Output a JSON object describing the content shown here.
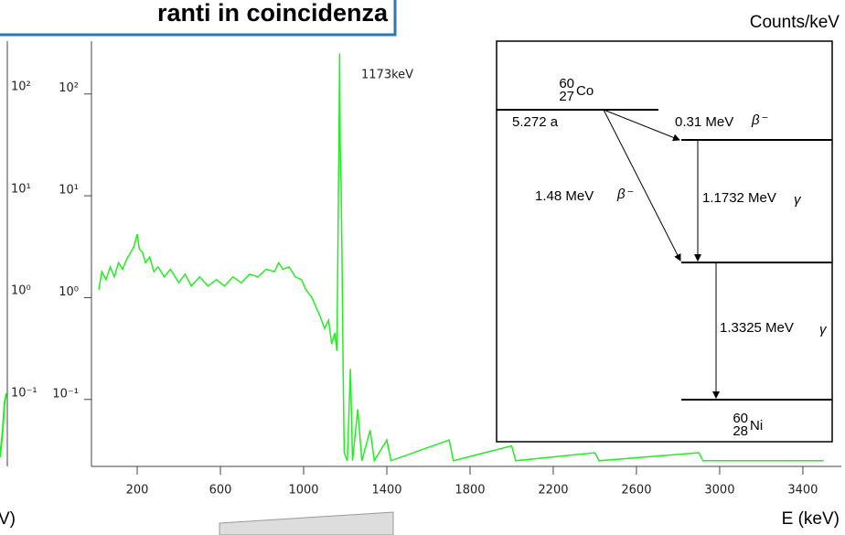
{
  "title_box": "ranti in coincidenza",
  "left_panel": {
    "yticks": [
      "10²",
      "10¹",
      "10⁰",
      "10⁻¹"
    ],
    "xlabel": "V)"
  },
  "chart_data": {
    "type": "line",
    "ylabel": "Counts/keV",
    "xlabel": "E (keV)",
    "annotation": "1173keV",
    "color": "#22ee22",
    "log_y": true,
    "x": [
      15,
      30,
      50,
      70,
      90,
      110,
      130,
      150,
      170,
      185,
      200,
      210,
      225,
      240,
      260,
      280,
      300,
      330,
      360,
      400,
      430,
      460,
      500,
      540,
      580,
      620,
      660,
      700,
      740,
      780,
      820,
      860,
      880,
      900,
      930,
      960,
      990,
      1010,
      1040,
      1060,
      1080,
      1100,
      1120,
      1135,
      1150,
      1160,
      1165,
      1170,
      1173,
      1176,
      1180,
      1185,
      1190,
      1195,
      1210,
      1225,
      1235,
      1260,
      1280,
      1320,
      1340,
      1400,
      1420,
      1700,
      1720,
      2000,
      2020,
      2400,
      2420,
      2900,
      2920,
      3500
    ],
    "values": [
      1.2,
      1.8,
      1.5,
      2.0,
      1.6,
      2.2,
      1.9,
      2.4,
      2.8,
      3.2,
      4.2,
      3.0,
      2.8,
      2.2,
      2.5,
      1.8,
      2.0,
      1.6,
      1.9,
      1.4,
      1.7,
      1.3,
      1.6,
      1.3,
      1.5,
      1.3,
      1.6,
      1.4,
      1.7,
      1.6,
      1.9,
      1.8,
      2.2,
      1.9,
      2.0,
      1.6,
      1.5,
      1.2,
      1.0,
      0.8,
      0.65,
      0.5,
      0.6,
      0.35,
      0.45,
      0.3,
      3.0,
      40,
      250,
      30,
      13,
      2.0,
      0.2,
      0.03,
      0.025,
      0.2,
      0.025,
      0.08,
      0.025,
      0.05,
      0.025,
      0.04,
      0.025,
      0.04,
      0.025,
      0.035,
      0.025,
      0.03,
      0.025,
      0.03,
      0.025,
      0.025
    ],
    "xlim": [
      -20,
      3585
    ],
    "ylim": [
      0.022,
      330
    ],
    "xticks": [
      200,
      600,
      1000,
      1400,
      1800,
      2200,
      2600,
      3000,
      3400
    ],
    "yticks": [
      {
        "value": 100,
        "label": "10²"
      },
      {
        "value": 10,
        "label": "10¹"
      },
      {
        "value": 1,
        "label": "10⁰"
      },
      {
        "value": 0.1,
        "label": "10⁻¹"
      }
    ]
  },
  "decay_scheme": {
    "parent": {
      "mass": "60",
      "atomic": "27",
      "symbol": "Co",
      "half_life": "5.272 a"
    },
    "daughter": {
      "mass": "60",
      "atomic": "28",
      "symbol": "Ni"
    },
    "beta1": {
      "energy": "0.31 MeV",
      "particle": "β⁻"
    },
    "beta2": {
      "energy": "1.48 MeV",
      "particle": "β⁻"
    },
    "gamma1": {
      "energy": "1.1732 MeV",
      "particle": "γ"
    },
    "gamma2": {
      "energy": "1.3325 MeV",
      "particle": "γ"
    }
  }
}
